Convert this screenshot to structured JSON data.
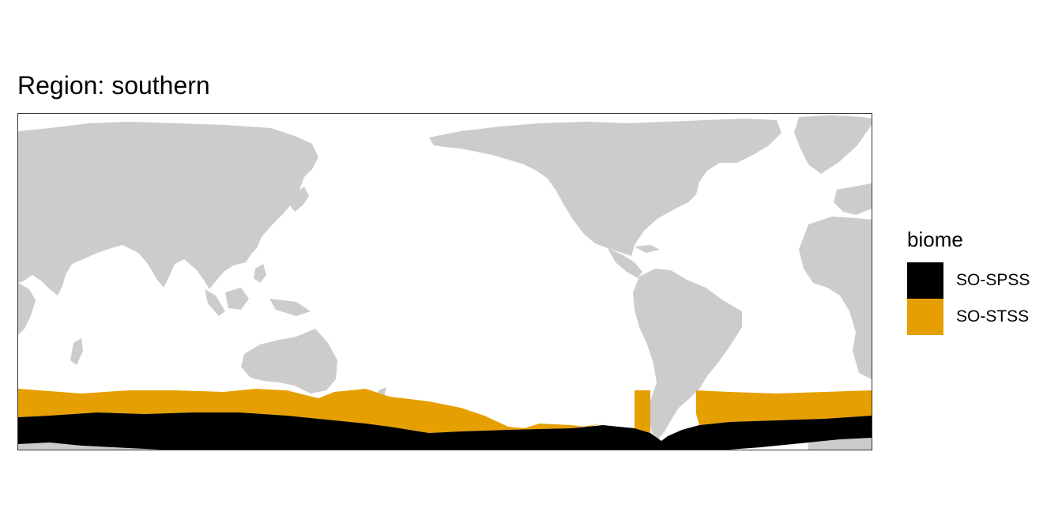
{
  "title": "Region: southern",
  "map": {
    "land_color": "#cccccc",
    "ocean_color": "#ffffff",
    "panel_border_color": "#333333"
  },
  "legend": {
    "title": "biome",
    "items": [
      {
        "label": "SO-SPSS",
        "color": "#000000"
      },
      {
        "label": "SO-STSS",
        "color": "#e69f00"
      }
    ]
  }
}
